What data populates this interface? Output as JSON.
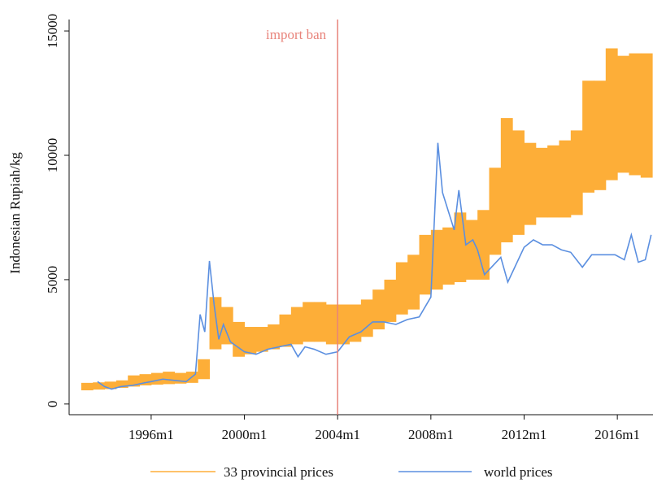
{
  "chart_data": {
    "type": "band-line",
    "y_label": "Indonesian Rupiah/kg",
    "xlim": [
      1992.48,
      2017.53
    ],
    "xticks": [
      {
        "value": 1996,
        "label": "1996m1"
      },
      {
        "value": 2000,
        "label": "2000m1"
      },
      {
        "value": 2004,
        "label": "2004m1"
      },
      {
        "value": 2008,
        "label": "2008m1"
      },
      {
        "value": 2012,
        "label": "2012m1"
      },
      {
        "value": 2016,
        "label": "2016m1"
      }
    ],
    "ylim": [
      -430,
      15460
    ],
    "yticks": [
      0,
      5000,
      10000,
      15000
    ],
    "annotation": {
      "x": 2004,
      "label": "import ban",
      "color": "#e8837a"
    },
    "series": [
      {
        "name": "33 provincial prices",
        "color": "#fdae38",
        "x": [
          1993.0,
          1993.5,
          1994.0,
          1994.5,
          1995.0,
          1995.5,
          1996.0,
          1996.5,
          1997.0,
          1997.5,
          1998.0,
          1998.5,
          1999.0,
          1999.5,
          2000.0,
          2000.5,
          2001.0,
          2001.5,
          2002.0,
          2002.5,
          2003.0,
          2003.5,
          2004.0,
          2004.5,
          2005.0,
          2005.5,
          2006.0,
          2006.5,
          2007.0,
          2007.5,
          2008.0,
          2008.5,
          2009.0,
          2009.5,
          2010.0,
          2010.5,
          2011.0,
          2011.5,
          2012.0,
          2012.5,
          2013.0,
          2013.5,
          2014.0,
          2014.5,
          2015.0,
          2015.5,
          2016.0,
          2016.5,
          2017.0
        ],
        "values": [
          [
            550,
            850
          ],
          [
            580,
            870
          ],
          [
            600,
            900
          ],
          [
            650,
            950
          ],
          [
            700,
            1150
          ],
          [
            750,
            1200
          ],
          [
            780,
            1250
          ],
          [
            800,
            1300
          ],
          [
            820,
            1250
          ],
          [
            850,
            1300
          ],
          [
            1000,
            1800
          ],
          [
            2200,
            4300
          ],
          [
            2400,
            3900
          ],
          [
            1900,
            3300
          ],
          [
            2000,
            3100
          ],
          [
            2100,
            3100
          ],
          [
            2200,
            3200
          ],
          [
            2300,
            3600
          ],
          [
            2400,
            3900
          ],
          [
            2500,
            4100
          ],
          [
            2500,
            4100
          ],
          [
            2400,
            4000
          ],
          [
            2400,
            4000
          ],
          [
            2500,
            4000
          ],
          [
            2700,
            4200
          ],
          [
            3000,
            4600
          ],
          [
            3300,
            5000
          ],
          [
            3600,
            5700
          ],
          [
            3800,
            6000
          ],
          [
            4400,
            6800
          ],
          [
            4600,
            7000
          ],
          [
            4800,
            7100
          ],
          [
            4900,
            7700
          ],
          [
            5000,
            7400
          ],
          [
            5000,
            7800
          ],
          [
            6000,
            9500
          ],
          [
            6500,
            11500
          ],
          [
            6800,
            11000
          ],
          [
            7200,
            10500
          ],
          [
            7500,
            10300
          ],
          [
            7500,
            10400
          ],
          [
            7500,
            10600
          ],
          [
            7600,
            11000
          ],
          [
            8500,
            13000
          ],
          [
            8600,
            13000
          ],
          [
            9000,
            14300
          ],
          [
            9300,
            14000
          ],
          [
            9200,
            14100
          ],
          [
            9100,
            14100
          ]
        ]
      },
      {
        "name": "world prices",
        "color": "#5b8fe0",
        "x": [
          1993.7,
          1994.0,
          1994.3,
          1994.7,
          1995.2,
          1995.7,
          1996.0,
          1996.5,
          1997.0,
          1997.5,
          1997.9,
          1998.1,
          1998.3,
          1998.5,
          1998.7,
          1998.9,
          1999.1,
          1999.4,
          1999.7,
          2000.0,
          2000.5,
          2001.0,
          2001.5,
          2002.0,
          2002.3,
          2002.6,
          2003.0,
          2003.5,
          2004.0,
          2004.5,
          2005.0,
          2005.5,
          2006.0,
          2006.5,
          2007.0,
          2007.5,
          2008.0,
          2008.3,
          2008.5,
          2008.8,
          2009.0,
          2009.2,
          2009.5,
          2009.8,
          2010.0,
          2010.3,
          2010.7,
          2011.0,
          2011.3,
          2011.6,
          2012.0,
          2012.4,
          2012.8,
          2013.2,
          2013.6,
          2014.0,
          2014.5,
          2014.9,
          2015.4,
          2015.9,
          2016.3,
          2016.6,
          2016.9,
          2017.2,
          2017.45
        ],
        "values": [
          900,
          700,
          600,
          700,
          750,
          850,
          900,
          1000,
          950,
          900,
          1200,
          3600,
          2900,
          5750,
          4000,
          2600,
          3200,
          2500,
          2300,
          2100,
          2000,
          2200,
          2300,
          2400,
          1900,
          2300,
          2200,
          2000,
          2100,
          2700,
          2900,
          3300,
          3300,
          3200,
          3400,
          3500,
          4300,
          10500,
          8500,
          7600,
          7000,
          8600,
          6400,
          6600,
          6200,
          5200,
          5600,
          5900,
          4900,
          5500,
          6300,
          6600,
          6400,
          6400,
          6200,
          6100,
          5500,
          6000,
          6000,
          6000,
          5800,
          6800,
          5700,
          5800,
          6800
        ]
      }
    ]
  }
}
